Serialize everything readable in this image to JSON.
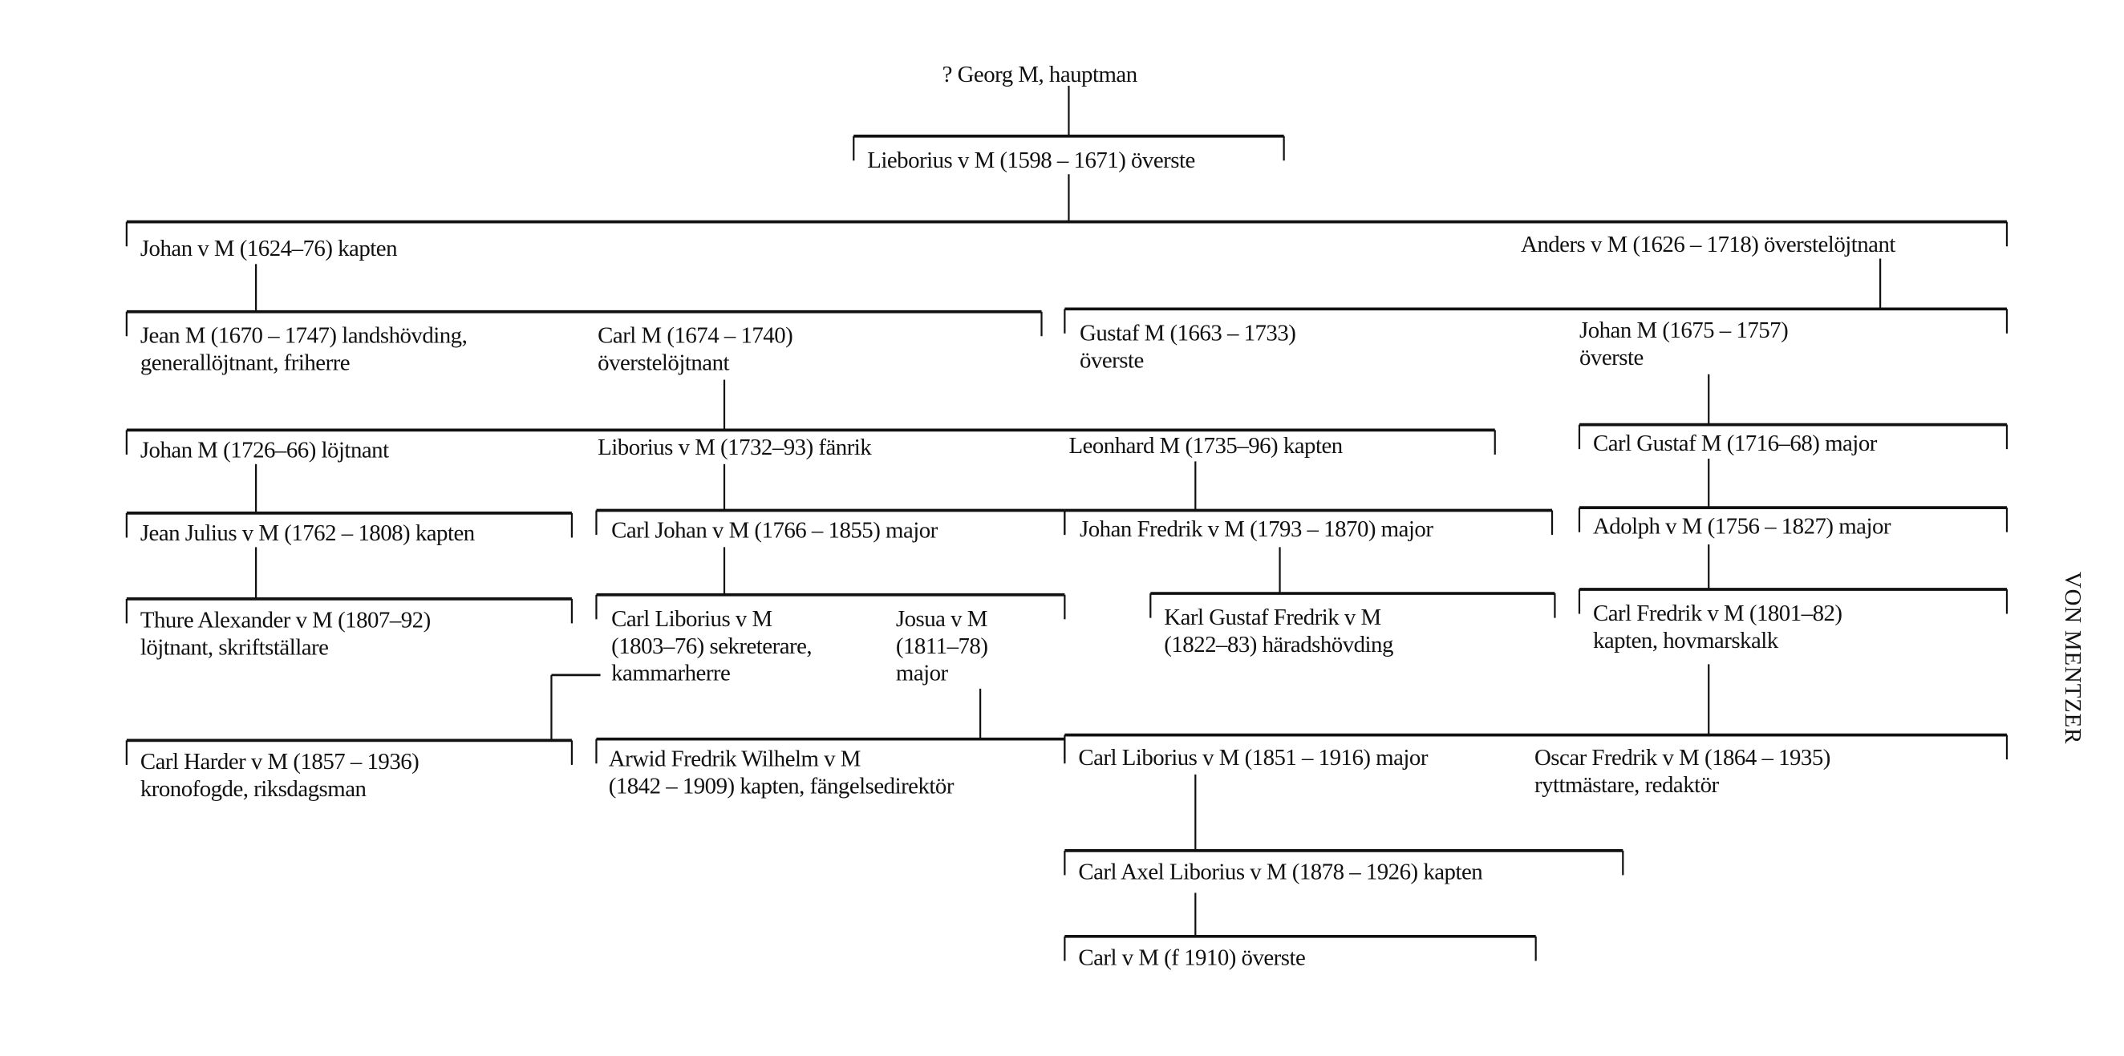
{
  "family_name": "VON MENTZER",
  "nodes": [
    {
      "id": "georg",
      "lines": [
        "? Georg M, hauptman"
      ]
    },
    {
      "id": "lieborius",
      "lines": [
        "Lieborius v M (1598 – 1671) överste"
      ]
    },
    {
      "id": "johan1624",
      "lines": [
        "Johan v M (1624–76) kapten"
      ]
    },
    {
      "id": "anders",
      "lines": [
        "Anders v M (1626 – 1718) överstelöjtnant"
      ]
    },
    {
      "id": "jean1670",
      "lines": [
        "Jean M (1670 – 1747) landshövding,",
        "generallöjtnant, friherre"
      ]
    },
    {
      "id": "carl1674",
      "lines": [
        "Carl M (1674 – 1740)",
        "överstelöjtnant"
      ]
    },
    {
      "id": "gustaf1663",
      "lines": [
        "Gustaf M (1663 – 1733)",
        "överste"
      ]
    },
    {
      "id": "johan1675",
      "lines": [
        "Johan M (1675 – 1757)",
        "överste"
      ]
    },
    {
      "id": "johan1726",
      "lines": [
        "Johan M (1726–66) löjtnant"
      ]
    },
    {
      "id": "liborius1732",
      "lines": [
        "Liborius v M (1732–93) fänrik"
      ]
    },
    {
      "id": "leonhard",
      "lines": [
        "Leonhard M (1735–96) kapten"
      ]
    },
    {
      "id": "carlgustaf1716",
      "lines": [
        "Carl Gustaf M (1716–68) major"
      ]
    },
    {
      "id": "jeanjulius",
      "lines": [
        "Jean Julius v M (1762 – 1808) kapten"
      ]
    },
    {
      "id": "carljohan",
      "lines": [
        "Carl Johan v M (1766 – 1855) major"
      ]
    },
    {
      "id": "johanfredrik",
      "lines": [
        "Johan Fredrik v M (1793 – 1870) major"
      ]
    },
    {
      "id": "adolph",
      "lines": [
        "Adolph v M (1756 – 1827) major"
      ]
    },
    {
      "id": "thure",
      "lines": [
        "Thure Alexander v M (1807–92)",
        "löjtnant, skriftställare"
      ]
    },
    {
      "id": "carlliborius1803",
      "lines": [
        "Carl Liborius v M",
        "(1803–76) sekreterare,",
        "kammarherre"
      ]
    },
    {
      "id": "josua",
      "lines": [
        "Josua v M",
        "(1811–78)",
        "major"
      ]
    },
    {
      "id": "karlgustaffredrik",
      "lines": [
        "Karl Gustaf Fredrik v M",
        "(1822–83) häradshövding"
      ]
    },
    {
      "id": "carlfredrik",
      "lines": [
        "Carl Fredrik v M (1801–82)",
        "kapten, hovmarskalk"
      ]
    },
    {
      "id": "carlharder",
      "lines": [
        "Carl Harder v M (1857 – 1936)",
        "kronofogde, riksdagsman"
      ]
    },
    {
      "id": "arwid",
      "lines": [
        "Arwid Fredrik Wilhelm v M",
        "(1842 – 1909) kapten, fängelsedirektör"
      ]
    },
    {
      "id": "carlliborius1851",
      "lines": [
        "Carl Liborius v M (1851 – 1916) major"
      ]
    },
    {
      "id": "oscar",
      "lines": [
        "Oscar Fredrik v M (1864 – 1935)",
        "ryttmästare, redaktör"
      ]
    },
    {
      "id": "carlaxel",
      "lines": [
        "Carl Axel Liborius v M (1878 – 1926) kapten"
      ]
    },
    {
      "id": "carl1910",
      "lines": [
        "Carl v M (f 1910) överste"
      ]
    }
  ]
}
